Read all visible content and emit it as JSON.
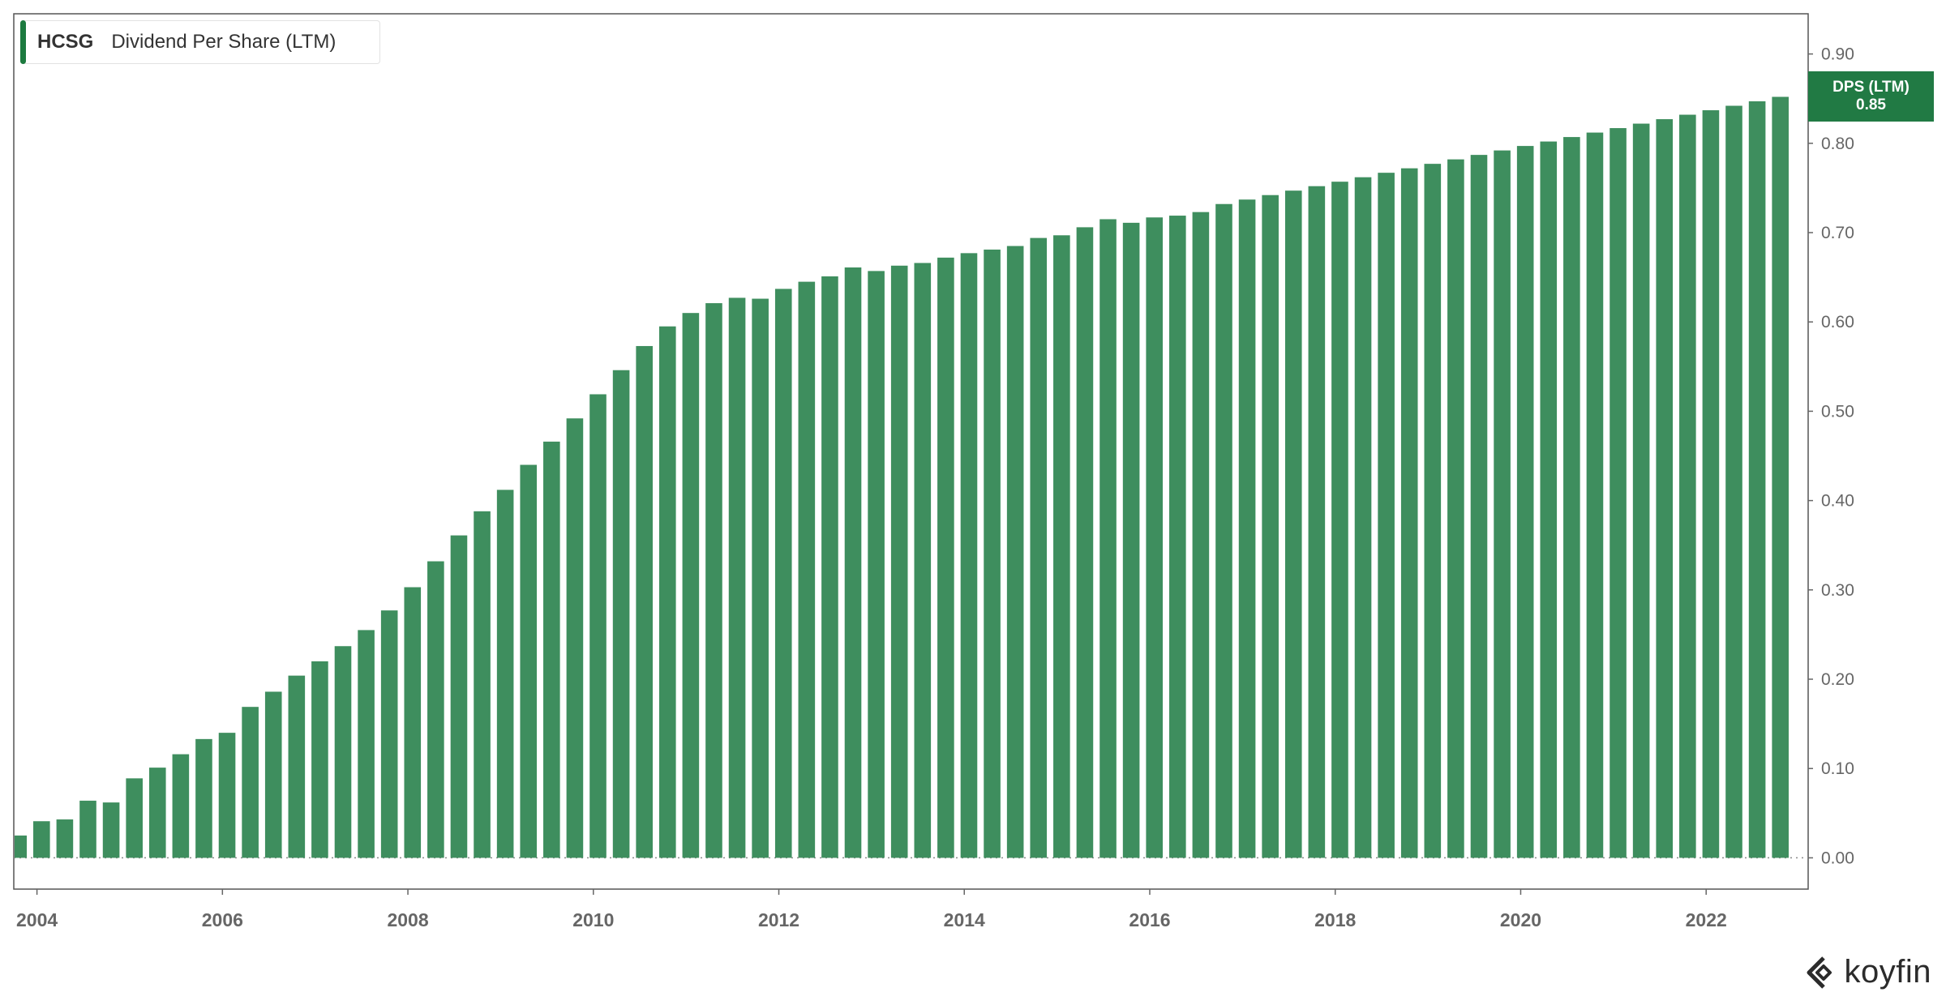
{
  "legend": {
    "ticker": "HCSG",
    "name": "Dividend Per Share (LTM)"
  },
  "value_tag": {
    "label": "DPS (LTM)",
    "value": "0.85"
  },
  "logo": {
    "text": "koyfin",
    "icon": "koyfin-chevron-icon"
  },
  "colors": {
    "bar": "#3e8e5e",
    "tag": "#217a44",
    "legend_swatch": "#1c7a3f",
    "axis": "#666666"
  },
  "chart_data": {
    "type": "bar",
    "title": "Dividend Per Share (LTM)",
    "series": [
      {
        "name": "HCSG",
        "x": [
          2003.8,
          2004.05,
          2004.3,
          2004.55,
          2004.8,
          2005.05,
          2005.3,
          2005.55,
          2005.8,
          2006.05,
          2006.3,
          2006.55,
          2006.8,
          2007.05,
          2007.3,
          2007.55,
          2007.8,
          2008.05,
          2008.3,
          2008.55,
          2008.8,
          2009.05,
          2009.3,
          2009.55,
          2009.8,
          2010.05,
          2010.3,
          2010.55,
          2010.8,
          2011.05,
          2011.3,
          2011.55,
          2011.8,
          2012.05,
          2012.3,
          2012.55,
          2012.8,
          2013.05,
          2013.3,
          2013.55,
          2013.8,
          2014.05,
          2014.3,
          2014.55,
          2014.8,
          2015.05,
          2015.3,
          2015.55,
          2015.8,
          2016.05,
          2016.3,
          2016.55,
          2016.8,
          2017.05,
          2017.3,
          2017.55,
          2017.8,
          2018.05,
          2018.3,
          2018.55,
          2018.8,
          2019.05,
          2019.3,
          2019.55,
          2019.8,
          2020.05,
          2020.3,
          2020.55,
          2020.8,
          2021.05,
          2021.3,
          2021.55,
          2021.8,
          2022.05,
          2022.3,
          2022.55,
          2022.8
        ],
        "values": [
          0.025,
          0.041,
          0.043,
          0.064,
          0.062,
          0.089,
          0.101,
          0.116,
          0.133,
          0.14,
          0.169,
          0.186,
          0.204,
          0.22,
          0.237,
          0.255,
          0.277,
          0.303,
          0.332,
          0.361,
          0.388,
          0.412,
          0.44,
          0.466,
          0.492,
          0.519,
          0.546,
          0.573,
          0.595,
          0.61,
          0.621,
          0.627,
          0.626,
          0.637,
          0.645,
          0.651,
          0.661,
          0.657,
          0.663,
          0.666,
          0.672,
          0.677,
          0.681,
          0.685,
          0.694,
          0.697,
          0.706,
          0.715,
          0.711,
          0.717,
          0.719,
          0.723,
          0.732,
          0.737,
          0.742,
          0.747,
          0.752,
          0.757,
          0.762,
          0.767,
          0.772,
          0.777,
          0.782,
          0.787,
          0.792,
          0.797,
          0.802,
          0.807,
          0.812,
          0.817,
          0.822,
          0.827,
          0.832,
          0.837,
          0.842,
          0.847,
          0.852
        ]
      }
    ],
    "x_ticks": [
      "2004",
      "2006",
      "2008",
      "2010",
      "2012",
      "2014",
      "2016",
      "2018",
      "2020",
      "2022"
    ],
    "x_tick_values": [
      2004,
      2006,
      2008,
      2010,
      2012,
      2014,
      2016,
      2018,
      2020,
      2022
    ],
    "y_ticks": [
      "0.00",
      "0.10",
      "0.20",
      "0.30",
      "0.40",
      "0.50",
      "0.60",
      "0.70",
      "0.80",
      "0.90"
    ],
    "y_tick_values": [
      0,
      0.1,
      0.2,
      0.3,
      0.4,
      0.5,
      0.6,
      0.7,
      0.8,
      0.9
    ],
    "xlim": [
      2003.75,
      2023.1
    ],
    "ylim": [
      -0.035,
      0.945
    ],
    "grid": false,
    "y_axis_position": "right",
    "legend": "top-left"
  }
}
